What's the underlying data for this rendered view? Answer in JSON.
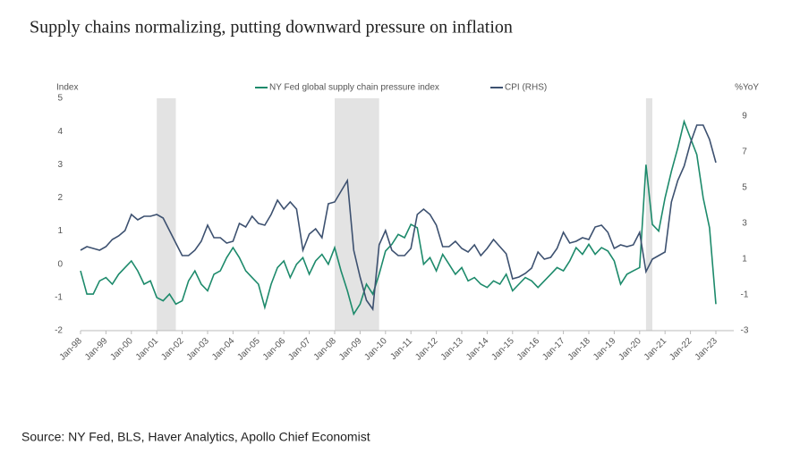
{
  "chart_data": {
    "type": "line",
    "title": "Supply chains normalizing, putting downward pressure on inflation",
    "y_label": "Index",
    "y2_label": "%YoY",
    "source": "Source: NY Fed, BLS, Haver Analytics, Apollo Chief Economist",
    "categories": [
      "Jan-98",
      null,
      null,
      null,
      "Jan-99",
      null,
      null,
      null,
      "Jan-00",
      null,
      null,
      null,
      "Jan-01",
      null,
      null,
      null,
      "Jan-02",
      null,
      null,
      null,
      "Jan-03",
      null,
      null,
      null,
      "Jan-04",
      null,
      null,
      null,
      "Jan-05",
      null,
      null,
      null,
      "Jan-06",
      null,
      null,
      null,
      "Jan-07",
      null,
      null,
      null,
      "Jan-08",
      null,
      null,
      null,
      "Jan-09",
      null,
      null,
      null,
      "Jan-10",
      null,
      null,
      null,
      "Jan-11",
      null,
      null,
      null,
      "Jan-12",
      null,
      null,
      null,
      "Jan-13",
      null,
      null,
      null,
      "Jan-14",
      null,
      null,
      null,
      "Jan-15",
      null,
      null,
      null,
      "Jan-16",
      null,
      null,
      null,
      "Jan-17",
      null,
      null,
      null,
      "Jan-18",
      null,
      null,
      null,
      "Jan-19",
      null,
      null,
      null,
      "Jan-20",
      null,
      null,
      null,
      "Jan-21",
      null,
      null,
      null,
      "Jan-22",
      null,
      null,
      null,
      "Jan-23"
    ],
    "shaded_periods": [
      [
        12,
        15
      ],
      [
        40,
        47
      ],
      [
        89,
        90
      ]
    ],
    "series": [
      {
        "name": "NY Fed global supply chain pressure index",
        "color": "#1d8a6b",
        "values": [
          -0.2,
          -0.9,
          -0.9,
          -0.5,
          -0.4,
          -0.6,
          -0.3,
          -0.1,
          0.1,
          -0.2,
          -0.6,
          -0.5,
          -1.0,
          -1.1,
          -0.9,
          -1.2,
          -1.1,
          -0.5,
          -0.2,
          -0.6,
          -0.8,
          -0.3,
          -0.2,
          0.2,
          0.5,
          0.2,
          -0.2,
          -0.4,
          -0.6,
          -1.3,
          -0.6,
          -0.1,
          0.1,
          -0.4,
          0.0,
          0.2,
          -0.3,
          0.1,
          0.3,
          0.0,
          0.5,
          -0.2,
          -0.8,
          -1.5,
          -1.2,
          -0.6,
          -0.9,
          -0.3,
          0.4,
          0.6,
          0.9,
          0.8,
          1.2,
          1.1,
          0.0,
          0.2,
          -0.2,
          0.3,
          0.0,
          -0.3,
          -0.1,
          -0.5,
          -0.4,
          -0.6,
          -0.7,
          -0.5,
          -0.6,
          -0.3,
          -0.8,
          -0.6,
          -0.4,
          -0.5,
          -0.7,
          -0.5,
          -0.3,
          -0.1,
          -0.2,
          0.1,
          0.5,
          0.3,
          0.6,
          0.3,
          0.5,
          0.4,
          0.1,
          -0.6,
          -0.3,
          -0.2,
          -0.1,
          3.0,
          1.2,
          1.0,
          2.0,
          2.8,
          3.5,
          4.3,
          3.8,
          3.3,
          2.0,
          1.1,
          -1.2
        ]
      },
      {
        "name": "CPI (RHS)",
        "color": "#3d5170",
        "axis": "y2",
        "values": [
          1.5,
          1.7,
          1.6,
          1.5,
          1.7,
          2.1,
          2.3,
          2.6,
          3.5,
          3.2,
          3.4,
          3.4,
          3.5,
          3.3,
          2.6,
          1.9,
          1.2,
          1.2,
          1.5,
          2.0,
          2.9,
          2.2,
          2.2,
          1.9,
          2.0,
          3.0,
          2.8,
          3.4,
          3.0,
          2.9,
          3.5,
          4.3,
          3.8,
          4.2,
          3.8,
          1.5,
          2.4,
          2.7,
          2.2,
          4.1,
          4.2,
          4.8,
          5.4,
          1.5,
          0.0,
          -1.3,
          -1.8,
          1.8,
          2.6,
          1.5,
          1.2,
          1.2,
          1.6,
          3.5,
          3.8,
          3.5,
          2.9,
          1.7,
          1.7,
          2.0,
          1.6,
          1.4,
          1.8,
          1.2,
          1.6,
          2.1,
          1.7,
          1.3,
          -0.1,
          0.0,
          0.2,
          0.5,
          1.4,
          1.0,
          1.1,
          1.6,
          2.5,
          1.9,
          2.0,
          2.2,
          2.1,
          2.8,
          2.9,
          2.5,
          1.6,
          1.8,
          1.7,
          1.8,
          2.5,
          0.3,
          1.0,
          1.2,
          1.4,
          4.2,
          5.4,
          6.2,
          7.5,
          8.5,
          8.5,
          7.7,
          6.4
        ]
      }
    ],
    "ylim": [
      -2,
      5
    ],
    "yticks": [
      -2,
      -1,
      0,
      1,
      2,
      3,
      4,
      5
    ],
    "y2lim": [
      -3,
      10
    ],
    "y2ticks": [
      -3,
      -1,
      1,
      3,
      5,
      7,
      9
    ]
  }
}
